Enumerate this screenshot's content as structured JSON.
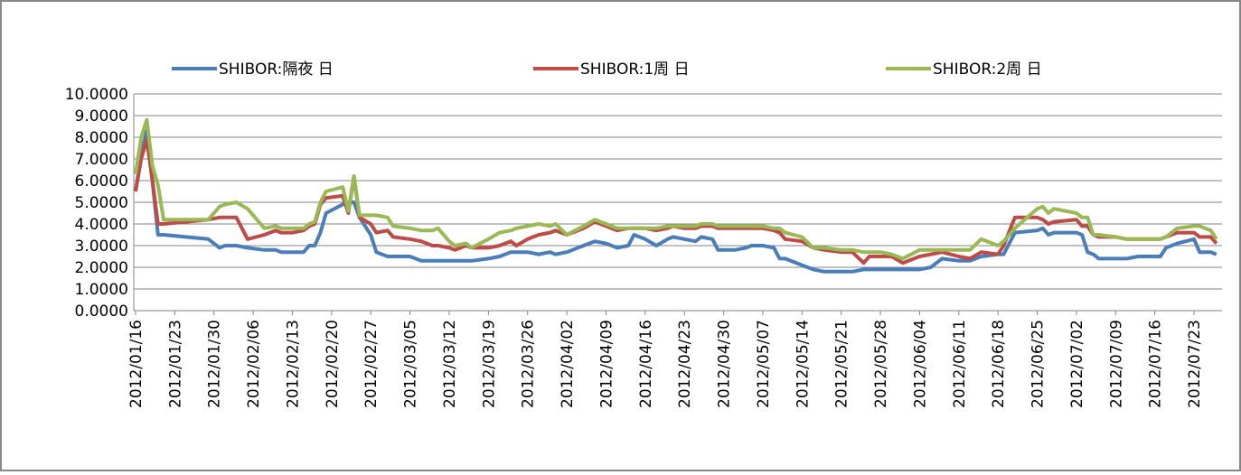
{
  "chart_data": {
    "type": "line",
    "x": [
      "2012/01/16",
      "2012/01/17",
      "2012/01/18",
      "2012/01/19",
      "2012/01/20",
      "2012/01/21",
      "2012/01/29",
      "2012/01/31",
      "2012/02/01",
      "2012/02/03",
      "2012/02/05",
      "2012/02/08",
      "2012/02/10",
      "2012/02/11",
      "2012/02/13",
      "2012/02/15",
      "2012/02/16",
      "2012/02/17",
      "2012/02/18",
      "2012/02/19",
      "2012/02/22",
      "2012/02/23",
      "2012/02/24",
      "2012/02/25",
      "2012/02/27",
      "2012/02/28",
      "2012/03/01",
      "2012/03/02",
      "2012/03/05",
      "2012/03/07",
      "2012/03/09",
      "2012/03/10",
      "2012/03/12",
      "2012/03/13",
      "2012/03/15",
      "2012/03/16",
      "2012/03/19",
      "2012/03/21",
      "2012/03/23",
      "2012/03/24",
      "2012/03/26",
      "2012/03/28",
      "2012/03/30",
      "2012/03/31",
      "2012/04/02",
      "2012/04/05",
      "2012/04/07",
      "2012/04/09",
      "2012/04/11",
      "2012/04/13",
      "2012/04/14",
      "2012/04/16",
      "2012/04/18",
      "2012/04/20",
      "2012/04/21",
      "2012/04/23",
      "2012/04/25",
      "2012/04/26",
      "2012/04/28",
      "2012/04/29",
      "2012/05/02",
      "2012/05/04",
      "2012/05/05",
      "2012/05/07",
      "2012/05/09",
      "2012/05/10",
      "2012/05/11",
      "2012/05/14",
      "2012/05/16",
      "2012/05/18",
      "2012/05/21",
      "2012/05/23",
      "2012/05/25",
      "2012/05/26",
      "2012/05/28",
      "2012/05/30",
      "2012/06/01",
      "2012/06/04",
      "2012/06/06",
      "2012/06/08",
      "2012/06/11",
      "2012/06/13",
      "2012/06/15",
      "2012/06/18",
      "2012/06/19",
      "2012/06/21",
      "2012/06/25",
      "2012/06/26",
      "2012/06/27",
      "2012/06/28",
      "2012/07/02",
      "2012/07/03",
      "2012/07/04",
      "2012/07/05",
      "2012/07/06",
      "2012/07/09",
      "2012/07/11",
      "2012/07/13",
      "2012/07/16",
      "2012/07/17",
      "2012/07/18",
      "2012/07/20",
      "2012/07/23",
      "2012/07/24",
      "2012/07/26",
      "2012/07/27"
    ],
    "series": [
      {
        "name": "SHIBOR:隔夜 日",
        "color": "#4a7ebb",
        "values": [
          5.5,
          7.2,
          8.3,
          6.0,
          3.5,
          3.5,
          3.3,
          2.9,
          3.0,
          3.0,
          2.9,
          2.8,
          2.8,
          2.7,
          2.7,
          2.7,
          3.0,
          3.0,
          3.6,
          4.5,
          4.9,
          5.0,
          5.0,
          4.3,
          3.5,
          2.7,
          2.5,
          2.5,
          2.5,
          2.3,
          2.3,
          2.3,
          2.3,
          2.3,
          2.3,
          2.3,
          2.4,
          2.5,
          2.7,
          2.7,
          2.7,
          2.6,
          2.7,
          2.6,
          2.7,
          3.0,
          3.2,
          3.1,
          2.9,
          3.0,
          3.5,
          3.3,
          3.0,
          3.3,
          3.4,
          3.3,
          3.2,
          3.4,
          3.3,
          2.8,
          2.8,
          2.9,
          3.0,
          3.0,
          2.9,
          2.4,
          2.4,
          2.1,
          1.9,
          1.8,
          1.8,
          1.8,
          1.9,
          1.9,
          1.9,
          1.9,
          1.9,
          1.9,
          2.0,
          2.4,
          2.3,
          2.3,
          2.5,
          2.6,
          2.6,
          3.6,
          3.7,
          3.8,
          3.5,
          3.6,
          3.6,
          3.5,
          2.7,
          2.6,
          2.4,
          2.4,
          2.4,
          2.5,
          2.5,
          2.5,
          2.9,
          3.1,
          3.3,
          2.7,
          2.7,
          2.6
        ]
      },
      {
        "name": "SHIBOR:1周 日",
        "color": "#be4b48",
        "values": [
          5.5,
          7.0,
          7.9,
          6.0,
          4.0,
          4.0,
          4.2,
          4.3,
          4.3,
          4.3,
          3.3,
          3.5,
          3.7,
          3.6,
          3.6,
          3.7,
          3.9,
          4.0,
          4.9,
          5.2,
          5.3,
          4.5,
          6.2,
          4.3,
          4.0,
          3.6,
          3.7,
          3.4,
          3.3,
          3.2,
          3.0,
          3.0,
          2.9,
          2.8,
          3.0,
          2.9,
          2.9,
          3.0,
          3.2,
          3.0,
          3.3,
          3.5,
          3.6,
          3.7,
          3.5,
          3.8,
          4.1,
          3.9,
          3.7,
          3.8,
          3.8,
          3.8,
          3.7,
          3.8,
          3.9,
          3.8,
          3.8,
          3.9,
          3.9,
          3.8,
          3.8,
          3.8,
          3.8,
          3.8,
          3.7,
          3.6,
          3.3,
          3.2,
          2.9,
          2.8,
          2.7,
          2.7,
          2.2,
          2.5,
          2.5,
          2.5,
          2.2,
          2.5,
          2.6,
          2.7,
          2.5,
          2.4,
          2.7,
          2.6,
          3.0,
          4.3,
          4.3,
          4.2,
          4.0,
          4.1,
          4.2,
          3.9,
          3.9,
          3.5,
          3.4,
          3.4,
          3.3,
          3.3,
          3.3,
          3.3,
          3.4,
          3.6,
          3.6,
          3.4,
          3.4,
          3.1
        ]
      },
      {
        "name": "SHIBOR:2周 日",
        "color": "#98b954",
        "values": [
          6.3,
          8.0,
          8.8,
          6.7,
          5.8,
          4.2,
          4.2,
          4.8,
          4.9,
          5.0,
          4.7,
          3.8,
          3.9,
          3.8,
          3.8,
          3.8,
          4.0,
          4.1,
          5.0,
          5.5,
          5.7,
          4.6,
          6.2,
          4.4,
          4.4,
          4.4,
          4.3,
          3.9,
          3.8,
          3.7,
          3.7,
          3.8,
          3.2,
          3.0,
          3.1,
          2.9,
          3.3,
          3.6,
          3.7,
          3.8,
          3.9,
          4.0,
          3.9,
          4.0,
          3.5,
          3.9,
          4.2,
          4.0,
          3.8,
          3.8,
          3.8,
          3.8,
          3.8,
          3.9,
          3.9,
          3.9,
          3.9,
          4.0,
          4.0,
          3.9,
          3.9,
          3.9,
          3.9,
          3.9,
          3.8,
          3.8,
          3.6,
          3.4,
          2.9,
          2.9,
          2.8,
          2.8,
          2.7,
          2.7,
          2.7,
          2.6,
          2.4,
          2.8,
          2.8,
          2.8,
          2.8,
          2.8,
          3.3,
          3.0,
          3.2,
          3.8,
          4.7,
          4.8,
          4.5,
          4.7,
          4.5,
          4.3,
          4.3,
          3.5,
          3.5,
          3.4,
          3.3,
          3.3,
          3.3,
          3.3,
          3.4,
          3.8,
          3.9,
          3.9,
          3.7,
          3.3
        ]
      }
    ],
    "xlim": [
      "2012/01/16",
      "2012/07/28"
    ],
    "xticks": [
      "2012/01/16",
      "2012/01/23",
      "2012/01/30",
      "2012/02/06",
      "2012/02/13",
      "2012/02/20",
      "2012/02/27",
      "2012/03/05",
      "2012/03/12",
      "2012/03/19",
      "2012/03/26",
      "2012/04/02",
      "2012/04/09",
      "2012/04/16",
      "2012/04/23",
      "2012/04/30",
      "2012/05/07",
      "2012/05/14",
      "2012/05/21",
      "2012/05/28",
      "2012/06/04",
      "2012/06/11",
      "2012/06/18",
      "2012/06/25",
      "2012/07/02",
      "2012/07/09",
      "2012/07/16",
      "2012/07/23"
    ],
    "ylim": [
      0,
      10
    ],
    "yticks": [
      {
        "value": 0,
        "label": "0.0000"
      },
      {
        "value": 1,
        "label": "1.0000"
      },
      {
        "value": 2,
        "label": "2.0000"
      },
      {
        "value": 3,
        "label": "3.0000"
      },
      {
        "value": 4,
        "label": "4.0000"
      },
      {
        "value": 5,
        "label": "5.0000"
      },
      {
        "value": 6,
        "label": "6.0000"
      },
      {
        "value": 7,
        "label": "7.0000"
      },
      {
        "value": 8,
        "label": "8.0000"
      },
      {
        "value": 9,
        "label": "9.0000"
      },
      {
        "value": 10,
        "label": "10.0000"
      }
    ],
    "grid": true,
    "legend": "top"
  }
}
